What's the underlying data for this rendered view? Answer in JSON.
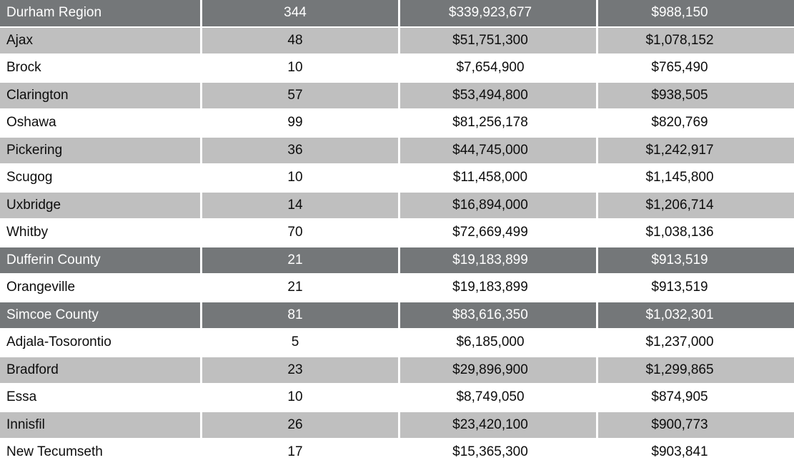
{
  "colors": {
    "section_bg": "#747779",
    "alt_bg": "#bfbfbf",
    "plain_bg": "#ffffff",
    "section_text": "#ffffff",
    "body_text": "#0d0d0d",
    "divider": "#ffffff"
  },
  "table": {
    "rows": [
      {
        "name": "Durham Region",
        "count": "344",
        "total": "$339,923,677",
        "average": "$988,150",
        "section": true
      },
      {
        "name": "Ajax",
        "count": "48",
        "total": "$51,751,300",
        "average": "$1,078,152",
        "section": false
      },
      {
        "name": "Brock",
        "count": "10",
        "total": "$7,654,900",
        "average": "$765,490",
        "section": false
      },
      {
        "name": "Clarington",
        "count": "57",
        "total": "$53,494,800",
        "average": "$938,505",
        "section": false
      },
      {
        "name": "Oshawa",
        "count": "99",
        "total": "$81,256,178",
        "average": "$820,769",
        "section": false
      },
      {
        "name": "Pickering",
        "count": "36",
        "total": "$44,745,000",
        "average": "$1,242,917",
        "section": false
      },
      {
        "name": "Scugog",
        "count": "10",
        "total": "$11,458,000",
        "average": "$1,145,800",
        "section": false
      },
      {
        "name": "Uxbridge",
        "count": "14",
        "total": "$16,894,000",
        "average": "$1,206,714",
        "section": false
      },
      {
        "name": "Whitby",
        "count": "70",
        "total": "$72,669,499",
        "average": "$1,038,136",
        "section": false
      },
      {
        "name": "Dufferin County",
        "count": "21",
        "total": "$19,183,899",
        "average": "$913,519",
        "section": true
      },
      {
        "name": "Orangeville",
        "count": "21",
        "total": "$19,183,899",
        "average": "$913,519",
        "section": false
      },
      {
        "name": "Simcoe County",
        "count": "81",
        "total": "$83,616,350",
        "average": "$1,032,301",
        "section": true
      },
      {
        "name": "Adjala-Tosorontio",
        "count": "5",
        "total": "$6,185,000",
        "average": "$1,237,000",
        "section": false
      },
      {
        "name": "Bradford",
        "count": "23",
        "total": "$29,896,900",
        "average": "$1,299,865",
        "section": false
      },
      {
        "name": "Essa",
        "count": "10",
        "total": "$8,749,050",
        "average": "$874,905",
        "section": false
      },
      {
        "name": "Innisfil",
        "count": "26",
        "total": "$23,420,100",
        "average": "$900,773",
        "section": false
      },
      {
        "name": "New Tecumseth",
        "count": "17",
        "total": "$15,365,300",
        "average": "$903,841",
        "section": false
      }
    ]
  }
}
